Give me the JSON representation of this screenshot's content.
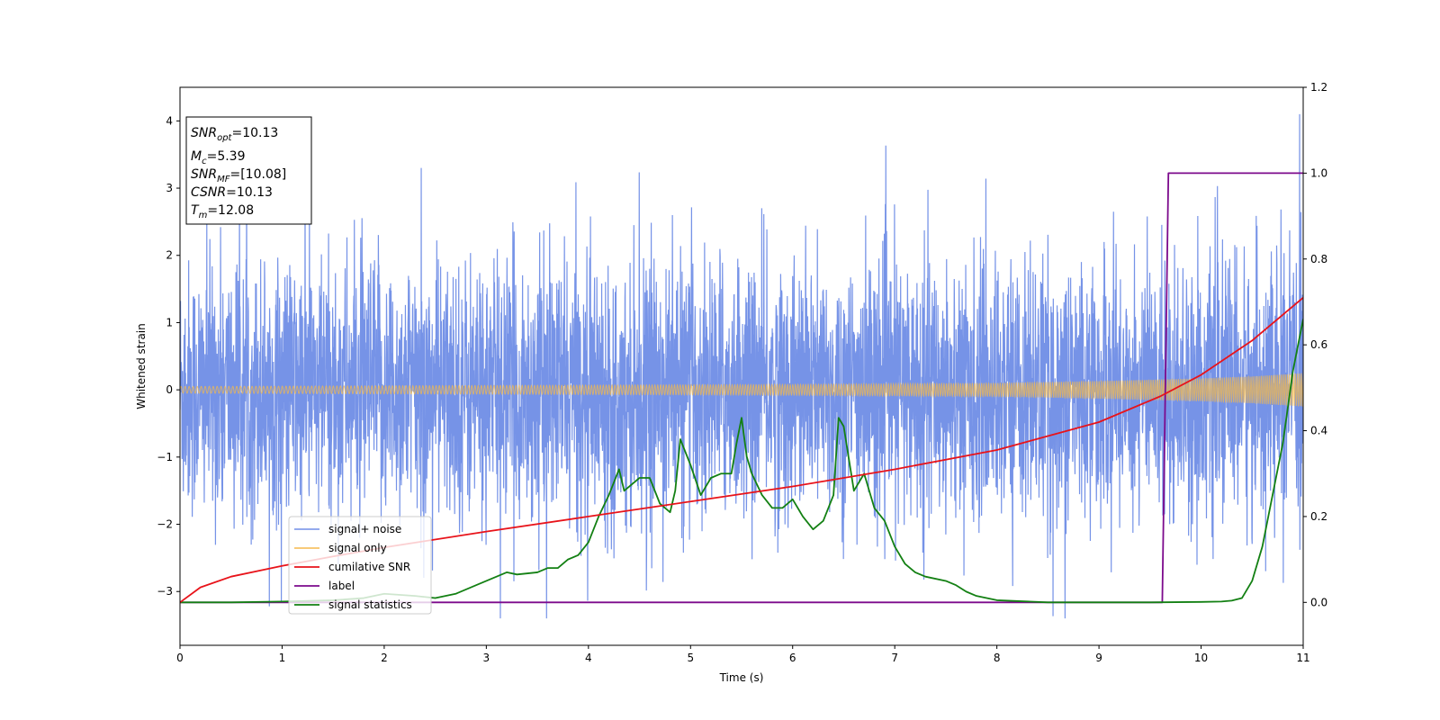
{
  "chart_data": {
    "type": "line",
    "title": "",
    "xlabel": "Time (s)",
    "ylabel": "Whitened strain",
    "xlim": [
      0,
      11
    ],
    "ylim": [
      -3.8,
      4.5
    ],
    "y2lim": [
      -0.1,
      1.2
    ],
    "xticks": [
      "0",
      "1",
      "2",
      "3",
      "4",
      "5",
      "6",
      "7",
      "8",
      "9",
      "10",
      "11"
    ],
    "yticks": [
      "−3",
      "−2",
      "−1",
      "0",
      "1",
      "2",
      "3",
      "4"
    ],
    "y2ticks": [
      "0.0",
      "0.2",
      "0.4",
      "0.6",
      "0.8",
      "1.0",
      "1.2"
    ],
    "grid": false,
    "legend_position": "lower-left",
    "colors": {
      "noise": "#6f8de6",
      "signal": "#f5b94a",
      "snr": "#e8131a",
      "label": "#7c0a8c",
      "stats": "#138013"
    },
    "annotation": [
      {
        "name": "SNR",
        "sub": "opt",
        "value": "=10.13"
      },
      {
        "name": "M",
        "sub": "c",
        "value": "=5.39"
      },
      {
        "name": "SNR",
        "sub": "MF",
        "value": "=[10.08]"
      },
      {
        "name": "CSNR",
        "sub": "",
        "value": "=10.13"
      },
      {
        "name": "T",
        "sub": "m",
        "value": "=12.08"
      }
    ],
    "series": [
      {
        "name": "signal+ noise",
        "axis": "left",
        "description": "whitened noisy strain, roughly Gaussian noise with amplitude ~1, spanning about -3.4 to 4.1",
        "envelope": {
          "x": [
            0,
            11
          ],
          "typical_low": -1.5,
          "typical_high": 1.6
        }
      },
      {
        "name": "signal only",
        "axis": "left",
        "description": "chirp signal whose amplitude grows from ~0.05 at t=0 to ~0.25 at t=11",
        "amplitude": {
          "x": [
            0,
            2,
            4,
            6,
            8,
            9,
            10,
            10.5,
            11
          ],
          "y": [
            0.05,
            0.06,
            0.07,
            0.08,
            0.1,
            0.13,
            0.17,
            0.2,
            0.25
          ]
        }
      },
      {
        "name": "cumilative SNR",
        "axis": "right",
        "x": [
          0,
          0.2,
          0.5,
          1,
          1.5,
          2,
          3,
          4,
          5,
          6,
          7,
          8,
          9,
          9.6,
          10,
          10.5,
          11
        ],
        "y": [
          0.0,
          0.035,
          0.06,
          0.085,
          0.107,
          0.128,
          0.165,
          0.2,
          0.235,
          0.27,
          0.31,
          0.355,
          0.42,
          0.48,
          0.53,
          0.61,
          0.71
        ]
      },
      {
        "name": "label",
        "axis": "right",
        "x": [
          0,
          9.62,
          9.68,
          11
        ],
        "y": [
          0.0,
          0.0,
          1.0,
          1.0
        ]
      },
      {
        "name": "signal statistics",
        "axis": "right",
        "x": [
          0,
          0.5,
          1,
          1.5,
          1.8,
          2,
          2.3,
          2.5,
          2.7,
          2.9,
          3.0,
          3.2,
          3.3,
          3.5,
          3.6,
          3.7,
          3.8,
          3.9,
          4.0,
          4.1,
          4.2,
          4.3,
          4.35,
          4.4,
          4.5,
          4.6,
          4.7,
          4.8,
          4.85,
          4.9,
          5.0,
          5.1,
          5.2,
          5.3,
          5.4,
          5.45,
          5.5,
          5.55,
          5.6,
          5.7,
          5.8,
          5.9,
          6.0,
          6.1,
          6.2,
          6.3,
          6.4,
          6.45,
          6.5,
          6.6,
          6.7,
          6.8,
          6.9,
          7.0,
          7.1,
          7.2,
          7.3,
          7.5,
          7.6,
          7.7,
          7.8,
          8.0,
          8.5,
          9.0,
          9.5,
          10.0,
          10.2,
          10.3,
          10.4,
          10.5,
          10.6,
          10.7,
          10.8,
          10.9,
          11.0
        ],
        "y": [
          0.0,
          0.0,
          0.002,
          0.005,
          0.01,
          0.02,
          0.015,
          0.01,
          0.02,
          0.04,
          0.05,
          0.07,
          0.065,
          0.07,
          0.08,
          0.08,
          0.1,
          0.11,
          0.14,
          0.2,
          0.25,
          0.31,
          0.26,
          0.27,
          0.29,
          0.29,
          0.23,
          0.21,
          0.26,
          0.38,
          0.32,
          0.25,
          0.29,
          0.3,
          0.3,
          0.37,
          0.43,
          0.34,
          0.3,
          0.25,
          0.22,
          0.22,
          0.24,
          0.2,
          0.17,
          0.19,
          0.25,
          0.43,
          0.41,
          0.26,
          0.3,
          0.22,
          0.19,
          0.13,
          0.09,
          0.07,
          0.06,
          0.05,
          0.04,
          0.025,
          0.015,
          0.005,
          0.0,
          0.0,
          0.0,
          0.001,
          0.002,
          0.004,
          0.01,
          0.05,
          0.13,
          0.25,
          0.37,
          0.54,
          0.66
        ]
      }
    ]
  }
}
